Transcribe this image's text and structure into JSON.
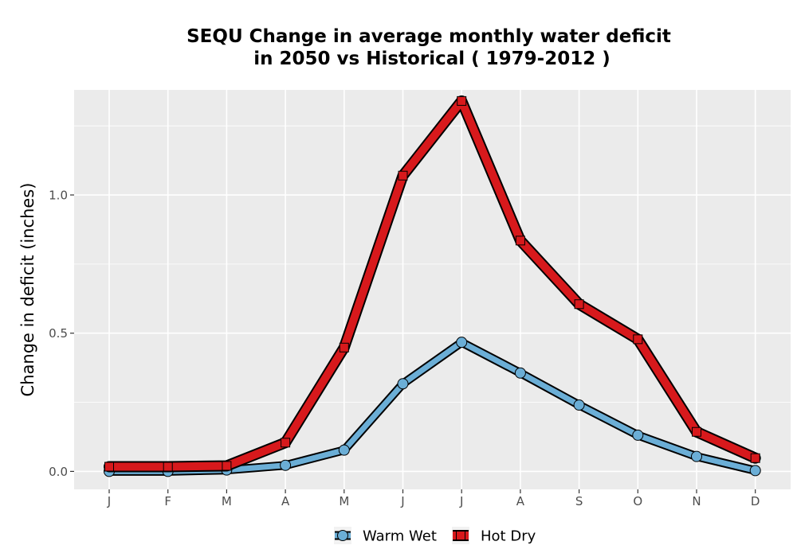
{
  "chart_data": {
    "type": "line",
    "title_line1": "SEQU  Change in average monthly water deficit",
    "title_line2": "in 2050 vs Historical ( 1979-2012 )",
    "xlabel": "",
    "ylabel": "Change in deficit (inches)",
    "categories": [
      "J",
      "F",
      "M",
      "A",
      "M",
      "J",
      "J",
      "A",
      "S",
      "O",
      "N",
      "D"
    ],
    "ylim": [
      -0.065,
      1.38
    ],
    "yticks": [
      0.0,
      0.5,
      1.0
    ],
    "ytick_labels": [
      "0.0",
      "0.5",
      "1.0"
    ],
    "grid": true,
    "legend_position": "bottom",
    "series": [
      {
        "name": "Warm Wet",
        "marker": "circle",
        "color": "#6baed6",
        "values": [
          0.0,
          0.0,
          0.005,
          0.022,
          0.077,
          0.317,
          0.467,
          0.356,
          0.24,
          0.131,
          0.054,
          0.003
        ]
      },
      {
        "name": "Hot Dry",
        "marker": "square",
        "color": "#d7191c",
        "values": [
          0.017,
          0.017,
          0.02,
          0.104,
          0.448,
          1.07,
          1.34,
          0.835,
          0.605,
          0.478,
          0.143,
          0.048
        ]
      }
    ]
  }
}
